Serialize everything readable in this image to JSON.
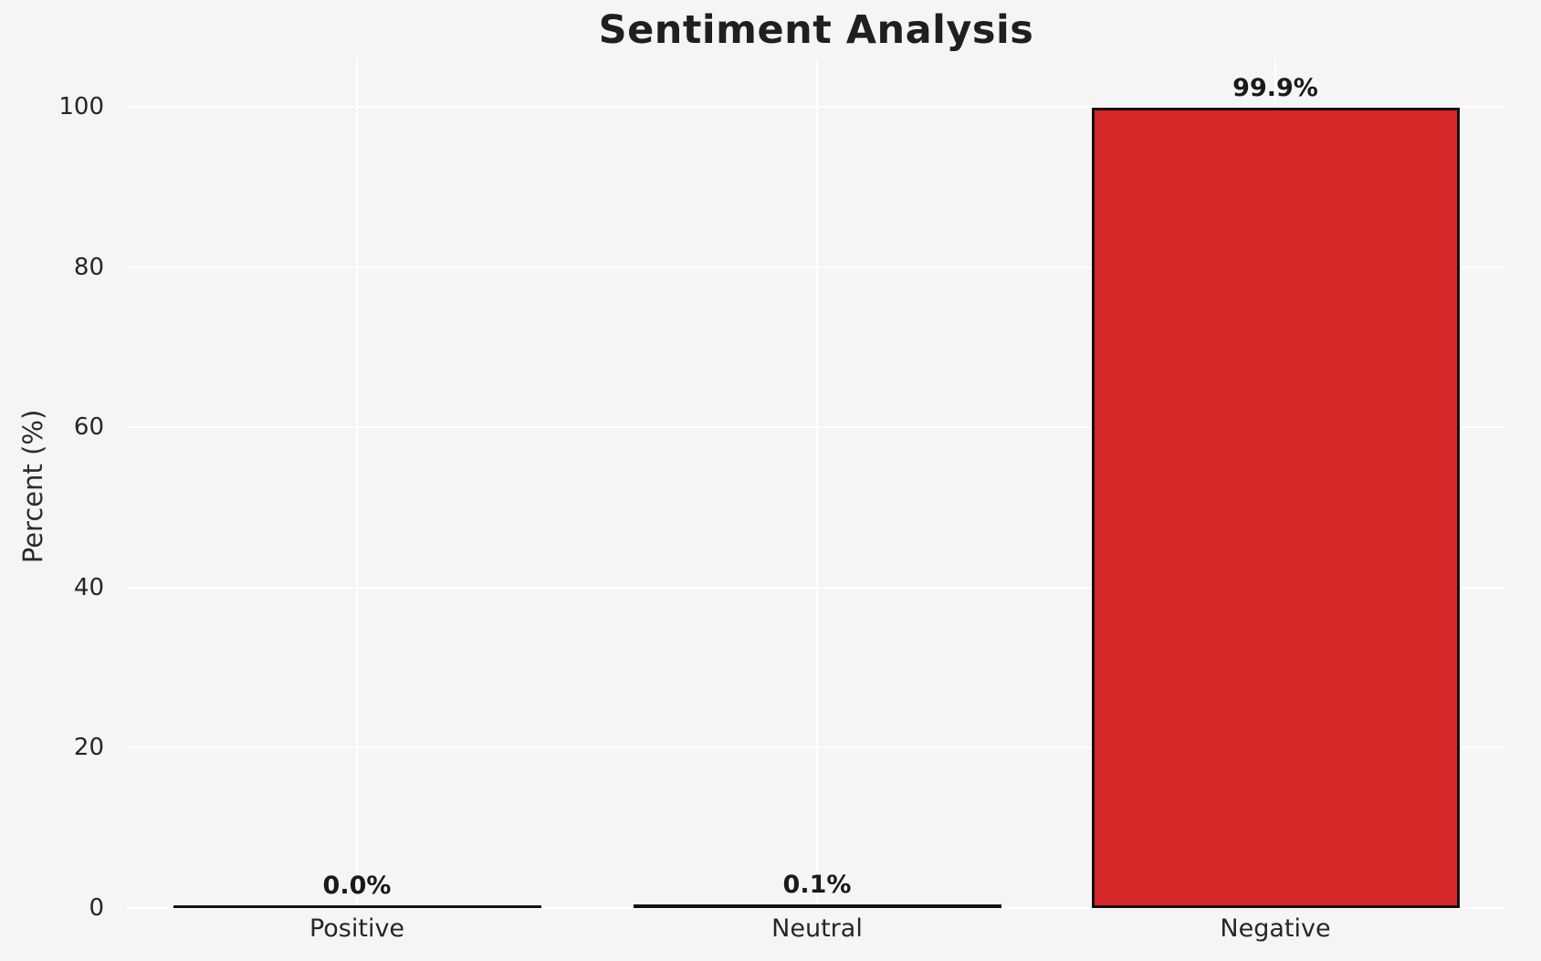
{
  "chart_data": {
    "type": "bar",
    "title": "Sentiment Analysis",
    "ylabel": "Percent (%)",
    "xlabel": "",
    "categories": [
      "Positive",
      "Neutral",
      "Negative"
    ],
    "values": [
      0.0,
      0.1,
      99.9
    ],
    "bar_labels": [
      "0.0%",
      "0.1%",
      "99.9%"
    ],
    "yticks": [
      0,
      20,
      40,
      60,
      80,
      100
    ],
    "ylim": [
      0,
      106
    ],
    "grid": true,
    "legend": false,
    "colors": {
      "bar_fill": "#d62828",
      "bar_edge": "#111111",
      "background": "#f5f5f6",
      "gridline": "#ffffff",
      "text": "#262626"
    }
  }
}
